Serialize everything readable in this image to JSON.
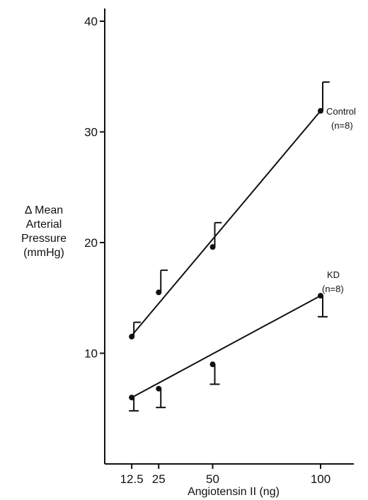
{
  "chart_data": {
    "type": "scatter",
    "xlabel": "Angiotensin II (ng)",
    "ylabel": [
      "Δ Mean",
      "Arterial",
      "Pressure",
      "(mmHg)"
    ],
    "xlim": [
      0,
      120
    ],
    "ylim": [
      0,
      42
    ],
    "xticks": [
      12.5,
      25,
      50,
      100
    ],
    "xtick_labels": [
      "12.5",
      "25",
      "50",
      "100"
    ],
    "yticks": [
      10,
      20,
      30,
      40
    ],
    "ytick_labels": [
      "10",
      "20",
      "30",
      "40"
    ],
    "grid": false,
    "series": [
      {
        "name": "Control",
        "n_label": "(n=8)",
        "x": [
          12.5,
          25,
          50,
          100
        ],
        "y": [
          11.5,
          15.5,
          19.6,
          31.9
        ],
        "error_upper": [
          12.8,
          17.5,
          21.8,
          34.5
        ],
        "fit_line": [
          [
            12.5,
            11.6
          ],
          [
            100,
            31.9
          ]
        ]
      },
      {
        "name": "KD",
        "n_label": "(n=8)",
        "x": [
          12.5,
          25,
          50,
          100
        ],
        "y": [
          6.0,
          6.8,
          9.0,
          15.2
        ],
        "error_lower": [
          4.8,
          5.1,
          7.2,
          13.3
        ],
        "fit_line": [
          [
            12.5,
            6.0
          ],
          [
            100,
            15.2
          ]
        ]
      }
    ]
  }
}
